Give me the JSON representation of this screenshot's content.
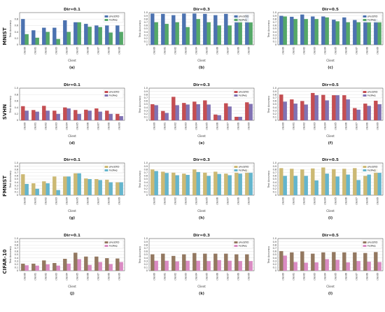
{
  "colors": {
    "MNIST": {
      "a": "#4c72b0",
      "b": "#55a868"
    },
    "SVHN": {
      "a": "#c44e52",
      "b": "#8172b3"
    },
    "FMNIST": {
      "a": "#ccb974",
      "b": "#64b5cd"
    },
    "CIFAR-10": {
      "a": "#937860",
      "b": "#da8bc3"
    }
  },
  "chart_data": [
    {
      "type": "bar",
      "dataset": "MNIST",
      "title": "Dir=0.1",
      "panel_label": "(a)",
      "xlabel": "Client",
      "ylabel": "Test Accuracy",
      "ylim": [
        0,
        1.0
      ],
      "yticks": [
        0,
        0.2,
        0.4,
        0.6,
        0.8
      ],
      "legend_position": "top-right",
      "categories": [
        "client0",
        "client1",
        "client2",
        "client3",
        "client4",
        "client5",
        "client6",
        "client7",
        "client8",
        "client9"
      ],
      "series": [
        {
          "name": "pFedZKD",
          "values": [
            0.8,
            0.45,
            0.53,
            0.53,
            0.76,
            0.7,
            0.65,
            0.6,
            0.6,
            0.6
          ]
        },
        {
          "name": "FedAvg",
          "values": [
            0.33,
            0.22,
            0.4,
            0.18,
            0.4,
            0.7,
            0.56,
            0.55,
            0.38,
            0.4
          ]
        }
      ]
    },
    {
      "type": "bar",
      "dataset": "MNIST",
      "title": "Dir=0.3",
      "panel_label": "(b)",
      "xlabel": "Client",
      "ylabel": "Test Accuracy",
      "ylim": [
        0,
        1.0
      ],
      "yticks": [
        0,
        0.1,
        0.2,
        0.3,
        0.4,
        0.5,
        0.6,
        0.7,
        0.8,
        0.9,
        1.0
      ],
      "legend_position": "top-right",
      "categories": [
        "client0",
        "client1",
        "client2",
        "client3",
        "client4",
        "client5",
        "client6",
        "client7",
        "client8",
        "client9"
      ],
      "series": [
        {
          "name": "pFedZKD",
          "values": [
            0.97,
            0.96,
            0.92,
            0.97,
            0.97,
            0.96,
            0.92,
            0.96,
            0.93,
            0.94
          ]
        },
        {
          "name": "FedAvg",
          "values": [
            0.7,
            0.65,
            0.7,
            0.55,
            0.8,
            0.7,
            0.6,
            0.6,
            0.8,
            0.7
          ]
        }
      ]
    },
    {
      "type": "bar",
      "dataset": "MNIST",
      "title": "Dir=0.5",
      "panel_label": "(c)",
      "xlabel": "Client",
      "ylabel": "Test Accuracy",
      "ylim": [
        0,
        1.0
      ],
      "yticks": [
        0,
        0.1,
        0.2,
        0.3,
        0.4,
        0.5,
        0.6,
        0.7,
        0.8,
        0.9,
        1.0
      ],
      "legend_position": "top-right",
      "categories": [
        "client0",
        "client1",
        "client2",
        "client3",
        "client4",
        "client5",
        "client6",
        "client7",
        "client8",
        "client9"
      ],
      "series": [
        {
          "name": "pFedZKD",
          "values": [
            0.9,
            0.87,
            0.94,
            0.88,
            0.88,
            0.78,
            0.85,
            0.77,
            0.8,
            0.8
          ]
        },
        {
          "name": "FedAvg",
          "values": [
            0.88,
            0.8,
            0.8,
            0.8,
            0.85,
            0.73,
            0.7,
            0.7,
            0.73,
            0.75
          ]
        }
      ]
    },
    {
      "type": "bar",
      "dataset": "SVHN",
      "title": "Dir=0.1",
      "panel_label": "(d)",
      "xlabel": "Client",
      "ylabel": "Test Accuracy",
      "ylim": [
        0,
        1.0
      ],
      "yticks": [
        0,
        0.2,
        0.4,
        0.6,
        0.8,
        1.0
      ],
      "legend_position": "top-right",
      "categories": [
        "client0",
        "client1",
        "client2",
        "client3",
        "client4",
        "client5",
        "client6",
        "client7",
        "client8",
        "client9"
      ],
      "series": [
        {
          "name": "pFedZKD",
          "values": [
            0.44,
            0.32,
            0.45,
            0.3,
            0.4,
            0.32,
            0.33,
            0.37,
            0.3,
            0.2
          ]
        },
        {
          "name": "FedAvg",
          "values": [
            0.3,
            0.27,
            0.3,
            0.2,
            0.37,
            0.2,
            0.3,
            0.27,
            0.2,
            0.13
          ]
        }
      ]
    },
    {
      "type": "bar",
      "dataset": "SVHN",
      "title": "Dir=0.3",
      "panel_label": "(e)",
      "xlabel": "Client",
      "ylabel": "Test Accuracy",
      "ylim": [
        0,
        1.0
      ],
      "yticks": [
        0,
        0.1,
        0.2,
        0.3,
        0.4,
        0.5,
        0.6,
        0.7,
        0.8,
        0.9,
        1.0
      ],
      "legend_position": "top-right",
      "categories": [
        "client0",
        "client1",
        "client2",
        "client3",
        "client4",
        "client5",
        "client6",
        "client7",
        "client8",
        "client9"
      ],
      "series": [
        {
          "name": "pFedZKD",
          "values": [
            0.5,
            0.29,
            0.73,
            0.54,
            0.58,
            0.62,
            0.18,
            0.53,
            0.11,
            0.56
          ]
        },
        {
          "name": "FedAvg",
          "values": [
            0.47,
            0.23,
            0.47,
            0.49,
            0.5,
            0.49,
            0.16,
            0.43,
            0.11,
            0.51
          ]
        }
      ]
    },
    {
      "type": "bar",
      "dataset": "SVHN",
      "title": "Dir=0.5",
      "panel_label": "(f)",
      "xlabel": "Client",
      "ylabel": "Test Accuracy",
      "ylim": [
        0,
        1.0
      ],
      "yticks": [
        0,
        0.1,
        0.2,
        0.3,
        0.4,
        0.5,
        0.6,
        0.7,
        0.8,
        0.9,
        1.0
      ],
      "legend_position": "top-right",
      "categories": [
        "client0",
        "client1",
        "client2",
        "client3",
        "client4",
        "client5",
        "client6",
        "client7",
        "client8",
        "client9"
      ],
      "series": [
        {
          "name": "pFedZKD",
          "values": [
            0.8,
            0.65,
            0.6,
            0.85,
            0.79,
            0.78,
            0.78,
            0.38,
            0.52,
            0.61
          ]
        },
        {
          "name": "FedAvg",
          "values": [
            0.58,
            0.52,
            0.49,
            0.78,
            0.62,
            0.78,
            0.65,
            0.33,
            0.45,
            0.5
          ]
        }
      ]
    },
    {
      "type": "bar",
      "dataset": "FMNIST",
      "title": "Dir=0.1",
      "panel_label": "(g)",
      "xlabel": "Client",
      "ylabel": "Test Accuracy",
      "ylim": [
        0,
        1.0
      ],
      "yticks": [
        0,
        0.1,
        0.2,
        0.3,
        0.4,
        0.5,
        0.6,
        0.7,
        0.8,
        0.9,
        1.0
      ],
      "legend_position": "top-right",
      "categories": [
        "client0",
        "client1",
        "client2",
        "client3",
        "client4",
        "client5",
        "client6",
        "client7",
        "client8",
        "client9"
      ],
      "series": [
        {
          "name": "pFedZKD",
          "values": [
            0.65,
            0.37,
            0.43,
            0.58,
            0.58,
            0.68,
            0.52,
            0.5,
            0.48,
            0.4
          ]
        },
        {
          "name": "FedAvg",
          "values": [
            0.35,
            0.2,
            0.37,
            0.16,
            0.58,
            0.68,
            0.5,
            0.47,
            0.4,
            0.4
          ]
        }
      ]
    },
    {
      "type": "bar",
      "dataset": "FMNIST",
      "title": "Dir=0.3",
      "panel_label": "(h)",
      "xlabel": "Client",
      "ylabel": "Test Accuracy",
      "ylim": [
        0,
        1.0
      ],
      "yticks": [
        0,
        0.1,
        0.2,
        0.3,
        0.4,
        0.5,
        0.6,
        0.7,
        0.8,
        0.9,
        1.0
      ],
      "legend_position": "top-right",
      "categories": [
        "client0",
        "client1",
        "client2",
        "client3",
        "client4",
        "client5",
        "client6",
        "client7",
        "client8",
        "client9"
      ],
      "series": [
        {
          "name": "pFedZKD",
          "values": [
            0.8,
            0.73,
            0.7,
            0.67,
            0.8,
            0.7,
            0.73,
            0.67,
            0.72,
            0.8
          ]
        },
        {
          "name": "FedAvg",
          "values": [
            0.75,
            0.69,
            0.62,
            0.63,
            0.72,
            0.6,
            0.66,
            0.62,
            0.67,
            0.73
          ]
        }
      ]
    },
    {
      "type": "bar",
      "dataset": "FMNIST",
      "title": "Dir=0.5",
      "panel_label": "(i)",
      "xlabel": "Client",
      "ylabel": "Test Accuracy",
      "ylim": [
        0,
        1.0
      ],
      "yticks": [
        0,
        0.1,
        0.2,
        0.3,
        0.4,
        0.5,
        0.6,
        0.7,
        0.8,
        0.9,
        1.0
      ],
      "legend_position": "top-right",
      "categories": [
        "client0",
        "client1",
        "client2",
        "client3",
        "client4",
        "client5",
        "client6",
        "client7",
        "client8",
        "client9"
      ],
      "series": [
        {
          "name": "pFedZKD",
          "values": [
            0.84,
            0.82,
            0.8,
            0.83,
            0.86,
            0.81,
            0.82,
            0.84,
            0.6,
            0.82
          ]
        },
        {
          "name": "FedAvg",
          "values": [
            0.6,
            0.6,
            0.6,
            0.46,
            0.67,
            0.58,
            0.64,
            0.47,
            0.64,
            0.7
          ]
        }
      ]
    },
    {
      "type": "bar",
      "dataset": "CIFAR-10",
      "title": "Dir=0.1",
      "panel_label": "(j)",
      "xlabel": "Client",
      "ylabel": "Test Accuracy",
      "ylim": [
        0,
        1.0
      ],
      "yticks": [
        0,
        0.1,
        0.2,
        0.3,
        0.4,
        0.5,
        0.6,
        0.7,
        0.8,
        0.9,
        1.0
      ],
      "legend_position": "top-right",
      "categories": [
        "client0",
        "client1",
        "client2",
        "client3",
        "client4",
        "client5",
        "client6",
        "client7",
        "client8",
        "client9"
      ],
      "series": [
        {
          "name": "pFedZKD",
          "values": [
            0.22,
            0.22,
            0.32,
            0.24,
            0.37,
            0.56,
            0.44,
            0.44,
            0.39,
            0.38
          ]
        },
        {
          "name": "FedAvg",
          "values": [
            0.17,
            0.16,
            0.2,
            0.16,
            0.22,
            0.36,
            0.18,
            0.27,
            0.21,
            0.27
          ]
        }
      ]
    },
    {
      "type": "bar",
      "dataset": "CIFAR-10",
      "title": "Dir=0.3",
      "panel_label": "(k)",
      "xlabel": "Client",
      "ylabel": "Test Accuracy",
      "ylim": [
        0,
        1.0
      ],
      "yticks": [
        0,
        0.1,
        0.2,
        0.3,
        0.4,
        0.5,
        0.6,
        0.7,
        0.8,
        0.9,
        1.0
      ],
      "legend_position": "top-right",
      "categories": [
        "client0",
        "client1",
        "client2",
        "client3",
        "client4",
        "client5",
        "client6",
        "client7",
        "client8",
        "client9"
      ],
      "series": [
        {
          "name": "pFedZKD",
          "values": [
            0.51,
            0.53,
            0.46,
            0.51,
            0.55,
            0.53,
            0.53,
            0.53,
            0.51,
            0.51
          ]
        },
        {
          "name": "FedAvg",
          "values": [
            0.31,
            0.31,
            0.29,
            0.31,
            0.31,
            0.3,
            0.33,
            0.31,
            0.3,
            0.3
          ]
        }
      ]
    },
    {
      "type": "bar",
      "dataset": "CIFAR-10",
      "title": "Dir=0.5",
      "panel_label": "(l)",
      "xlabel": "Client",
      "ylabel": "Test Accuracy",
      "ylim": [
        0,
        1.0
      ],
      "yticks": [
        0,
        0.1,
        0.2,
        0.3,
        0.4,
        0.5,
        0.6,
        0.7,
        0.8,
        0.9,
        1.0
      ],
      "legend_position": "top-right",
      "categories": [
        "client0",
        "client1",
        "client2",
        "client3",
        "client4",
        "client5",
        "client6",
        "client7",
        "client8",
        "client9"
      ],
      "series": [
        {
          "name": "pFedZKD",
          "values": [
            0.61,
            0.57,
            0.6,
            0.53,
            0.57,
            0.58,
            0.57,
            0.57,
            0.55,
            0.58
          ]
        },
        {
          "name": "FedAvg",
          "values": [
            0.47,
            0.27,
            0.25,
            0.26,
            0.36,
            0.34,
            0.26,
            0.3,
            0.28,
            0.27
          ]
        }
      ]
    }
  ]
}
